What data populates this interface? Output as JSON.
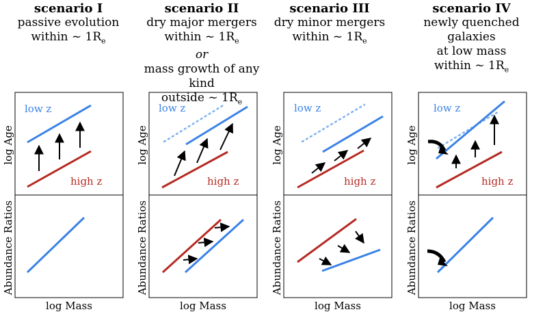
{
  "colors": {
    "low_z": "#3a82e6",
    "high_z": "#b52a22",
    "frame": "#000000",
    "arrow": "#000000"
  },
  "axes": {
    "y_top": "log Age",
    "y_bottom": "Abundance Ratios",
    "x": "log Mass"
  },
  "legend": {
    "low_z": "low z",
    "high_z": "high z"
  },
  "scenarios": [
    {
      "heading": "scenario I",
      "lines": [
        "passive evolution",
        "within ~ 1R",
        "e"
      ]
    },
    {
      "heading": "scenario II",
      "lines": [
        "dry major mergers",
        "within ~ 1R",
        "e",
        "or",
        "mass growth of any kind",
        "outside ~ 1R",
        "e"
      ]
    },
    {
      "heading": "scenario III",
      "lines": [
        "dry minor mergers",
        "within ~ 1R",
        "e"
      ]
    },
    {
      "heading": "scenario IV",
      "lines": [
        "newly quenched galaxies",
        "at low mass",
        "within ~ 1R",
        "e"
      ]
    }
  ]
}
